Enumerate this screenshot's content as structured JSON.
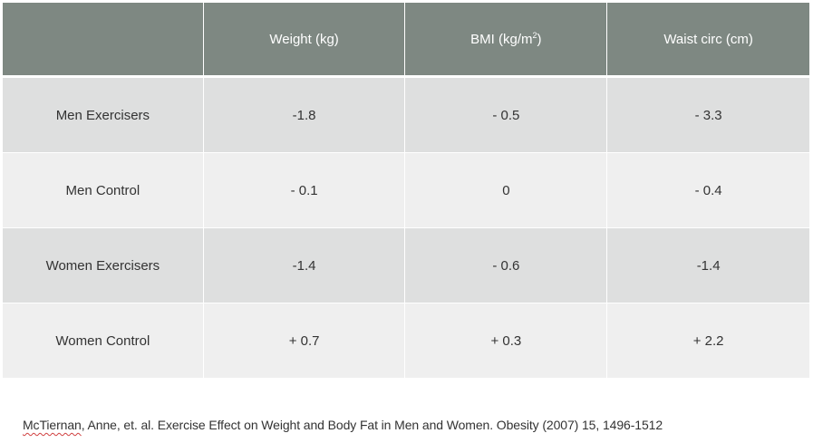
{
  "table": {
    "columns": [
      {
        "label": "",
        "superscript": ""
      },
      {
        "label": "Weight (kg)",
        "superscript": ""
      },
      {
        "label": "BMI (kg/m",
        "superscript": "2",
        "suffix": ")"
      },
      {
        "label": "Waist circ (cm)",
        "superscript": ""
      }
    ],
    "rows": [
      {
        "label": "Men Exercisers",
        "values": [
          "-1.8",
          "- 0.5",
          "- 3.3"
        ]
      },
      {
        "label": "Men Control",
        "values": [
          "- 0.1",
          "0",
          "- 0.4"
        ]
      },
      {
        "label": "Women Exercisers",
        "values": [
          "-1.4",
          "- 0.6",
          "-1.4"
        ]
      },
      {
        "label": "Women Control",
        "values": [
          "+ 0.7",
          "+ 0.3",
          "+ 2.2"
        ]
      }
    ]
  },
  "citation": {
    "author": "McTiernan",
    "rest": ", Anne, et. al. Exercise Effect on Weight and Body Fat in Men and Women. Obesity (2007) 15, 1496-1512"
  },
  "colors": {
    "header_background": "#7e8882",
    "row_dark": "#dedfdf",
    "row_light": "#efefef",
    "text": "#333333"
  }
}
